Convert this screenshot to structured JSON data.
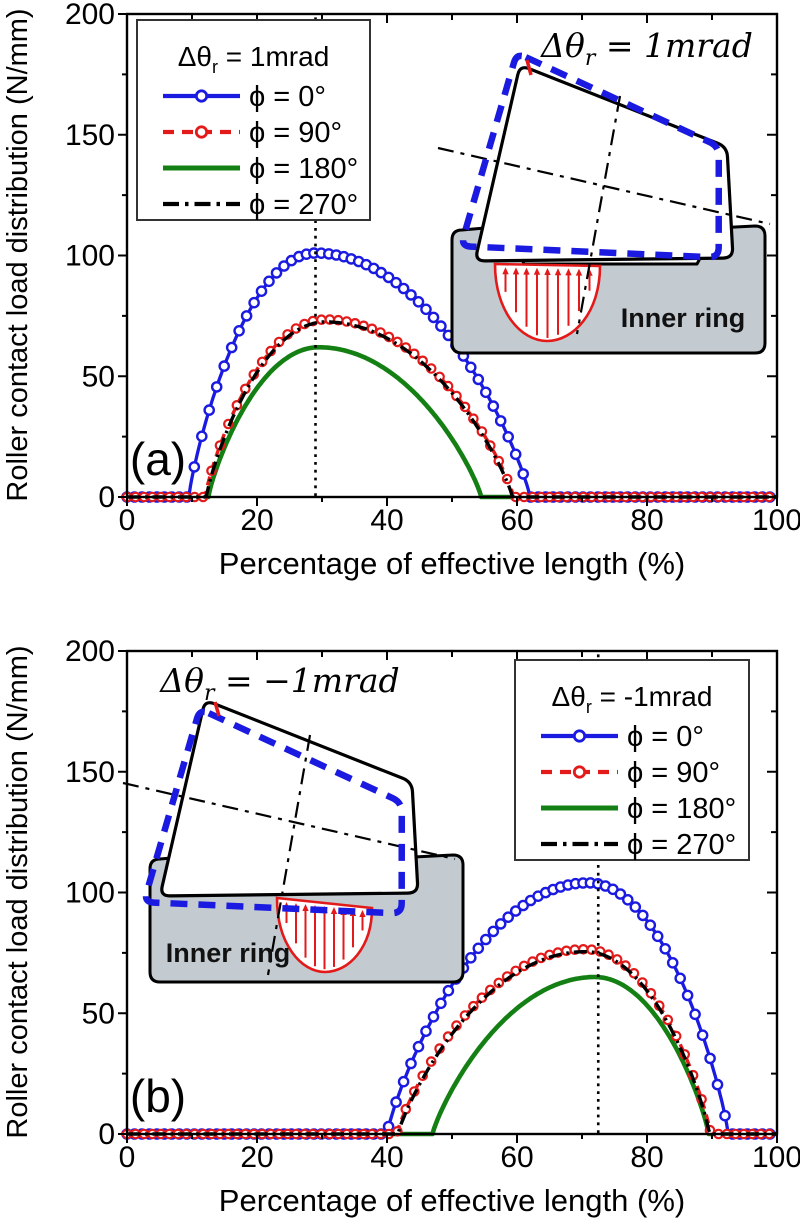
{
  "figure": {
    "xlabel": "Percentage of effective length (%)",
    "ylabel": "Roller contact load distribution (N/mm)",
    "colors": {
      "blue": "#1a1ae0",
      "red": "#e31a1a",
      "green": "#148014",
      "black": "#000000",
      "inner_ring_fill": "#c3cbd1",
      "axis": "#000000",
      "legend_border": "#333333"
    }
  },
  "chart_data": [
    {
      "type": "line",
      "panel_label": "(a)",
      "xlabel": "Percentage of effective length (%)",
      "ylabel": "Roller contact load distribution (N/mm)",
      "xlim": [
        0,
        100
      ],
      "ylim": [
        0,
        200
      ],
      "x_ticks": [
        0,
        20,
        40,
        60,
        80,
        100
      ],
      "y_ticks": [
        0,
        50,
        100,
        150,
        200
      ],
      "x_minor_step": 10,
      "y_minor_step": 25,
      "grid": false,
      "guide_line_x": 29,
      "legend": {
        "position": "top-left",
        "title_prefix": "Δθ",
        "title_sub": "r",
        "title_value": " = 1mrad",
        "entries": [
          {
            "series": "phi0",
            "label": "ϕ = 0°"
          },
          {
            "series": "phi90",
            "label": "ϕ = 90°"
          },
          {
            "series": "phi180",
            "label": "ϕ = 180°"
          },
          {
            "series": "phi270",
            "label": "ϕ = 270°"
          }
        ]
      },
      "curve_model": "q(x) = peak_value*(1-u^2)^0.85 with u=(x-x_peak)/(x_peak-x_start) for x<x_peak else (x-x_peak)/(x_end-x_peak); q=0 outside [x_start,x_end]",
      "series": [
        {
          "id": "phi0",
          "label": "ϕ = 0°",
          "color": "#1a1ae0",
          "style": "solid",
          "marker": "circle",
          "x_start": 9.5,
          "x_peak": 29,
          "x_end": 62,
          "peak_value": 101
        },
        {
          "id": "phi90",
          "label": "ϕ = 90°",
          "color": "#e31a1a",
          "style": "dashed",
          "marker": "circle",
          "x_start": 12,
          "x_peak": 30.5,
          "x_end": 59.5,
          "peak_value": 73.5
        },
        {
          "id": "phi180",
          "label": "ϕ = 180°",
          "color": "#148014",
          "style": "solid",
          "marker": "none",
          "x_start": 12.5,
          "x_peak": 29.5,
          "x_end": 54.5,
          "peak_value": 62
        },
        {
          "id": "phi270",
          "label": "ϕ = 270°",
          "color": "#000000",
          "style": "dashdot",
          "marker": "none",
          "x_start": 12.2,
          "x_peak": 30.5,
          "x_end": 59.3,
          "peak_value": 72.5
        }
      ],
      "inset": {
        "math_prefix": "Δθ",
        "math_sub": "r",
        "math_value": " = 1mrad",
        "ring_label": "Inner ring",
        "load_side": "left"
      }
    },
    {
      "type": "line",
      "panel_label": "(b)",
      "xlabel": "Percentage of effective length (%)",
      "ylabel": "Roller contact load distribution (N/mm)",
      "xlim": [
        0,
        100
      ],
      "ylim": [
        0,
        200
      ],
      "x_ticks": [
        0,
        20,
        40,
        60,
        80,
        100
      ],
      "y_ticks": [
        0,
        50,
        100,
        150,
        200
      ],
      "x_minor_step": 10,
      "y_minor_step": 25,
      "grid": false,
      "guide_line_x": 72.5,
      "legend": {
        "position": "top-right",
        "title_prefix": "Δθ",
        "title_sub": "r",
        "title_value": " = -1mrad",
        "entries": [
          {
            "series": "phi0",
            "label": "ϕ = 0°"
          },
          {
            "series": "phi90",
            "label": "ϕ = 90°"
          },
          {
            "series": "phi180",
            "label": "ϕ = 180°"
          },
          {
            "series": "phi270",
            "label": "ϕ = 270°"
          }
        ]
      },
      "curve_model": "q(x) = peak_value*(1-u^2)^0.85 with u=(x-x_peak)/(x_peak-x_start) for x<x_peak else (x-x_peak)/(x_end-x_peak); q=0 outside [x_start,x_end]",
      "series": [
        {
          "id": "phi0",
          "label": "ϕ = 0°",
          "color": "#1a1ae0",
          "style": "solid",
          "marker": "circle",
          "x_start": 40,
          "x_peak": 71,
          "x_end": 92.5,
          "peak_value": 104
        },
        {
          "id": "phi90",
          "label": "ϕ = 90°",
          "color": "#e31a1a",
          "style": "dashed",
          "marker": "circle",
          "x_start": 41.5,
          "x_peak": 70.5,
          "x_end": 89.8,
          "peak_value": 76.5
        },
        {
          "id": "phi180",
          "label": "ϕ = 180°",
          "color": "#148014",
          "style": "solid",
          "marker": "none",
          "x_start": 47,
          "x_peak": 72,
          "x_end": 89.5,
          "peak_value": 65
        },
        {
          "id": "phi270",
          "label": "ϕ = 270°",
          "color": "#000000",
          "style": "dashdot",
          "marker": "none",
          "x_start": 41.7,
          "x_peak": 70.5,
          "x_end": 89.6,
          "peak_value": 75.5
        }
      ],
      "inset": {
        "math_prefix": "Δθ",
        "math_sub": "r",
        "math_value": " = −1mrad",
        "ring_label": "Inner ring",
        "load_side": "right"
      }
    }
  ]
}
